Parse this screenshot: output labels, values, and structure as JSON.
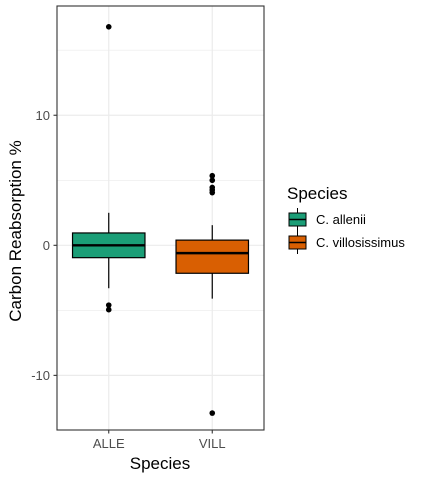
{
  "chart_data": {
    "type": "boxplot",
    "title": "",
    "xlabel": "Species",
    "ylabel": "Carbon Reabsorption %",
    "categories": [
      "ALLE",
      "VILL"
    ],
    "ylim": [
      -14.2,
      18.4
    ],
    "yticks": [
      -10,
      0,
      10
    ],
    "grid": true,
    "legend": {
      "title": "Species",
      "position": "right",
      "entries": [
        "C. allenii",
        "C. villosissimus"
      ]
    },
    "colors": [
      "#1b9e77",
      "#d95f02"
    ],
    "series": [
      {
        "name": "C. allenii",
        "category": "ALLE",
        "whisker_low": -3.3,
        "q1": -0.95,
        "median": 0.0,
        "q3": 0.95,
        "whisker_high": 2.5,
        "outliers": [
          16.8,
          -4.6,
          -4.95
        ]
      },
      {
        "name": "C. villosissimus",
        "category": "VILL",
        "whisker_low": -4.1,
        "q1": -2.15,
        "median": -0.6,
        "q3": 0.4,
        "whisker_high": 1.55,
        "outliers": [
          5.35,
          5.0,
          4.45,
          4.25,
          4.05,
          -12.9
        ]
      }
    ]
  }
}
